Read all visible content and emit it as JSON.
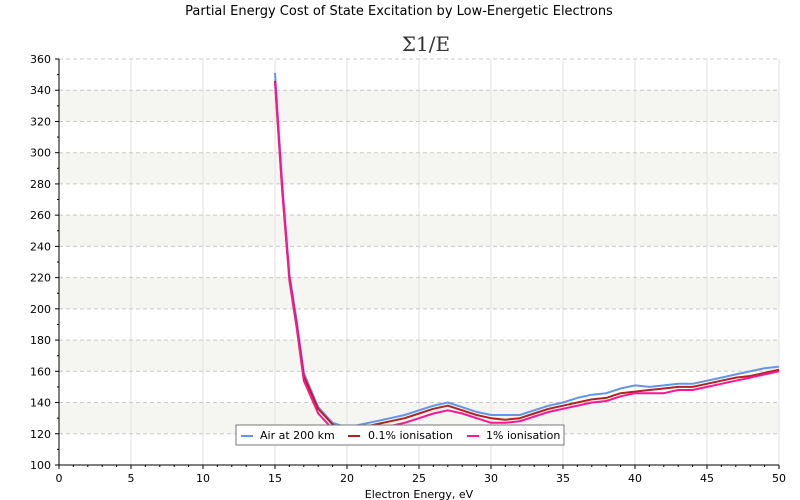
{
  "chart_data": {
    "type": "line",
    "title": "Partial Energy Cost of State Excitation by Low-Energetic Electrons",
    "subtitle": "Σ1/E",
    "xlabel": "Electron Energy, eV",
    "ylabel": "",
    "xlim": [
      0,
      50
    ],
    "ylim": [
      100,
      360
    ],
    "x_ticks": [
      0,
      5,
      10,
      15,
      20,
      25,
      30,
      35,
      40,
      45,
      50
    ],
    "y_ticks": [
      100,
      120,
      140,
      160,
      180,
      200,
      220,
      240,
      260,
      280,
      300,
      320,
      340,
      360
    ],
    "grid": true,
    "legend_position": "bottom-center",
    "x": [
      15,
      15.5,
      16,
      16.5,
      17,
      18,
      19,
      20,
      21,
      22,
      23,
      24,
      25,
      26,
      27,
      28,
      29,
      30,
      31,
      32,
      33,
      34,
      35,
      36,
      37,
      38,
      39,
      40,
      41,
      42,
      43,
      44,
      45,
      46,
      47,
      48,
      49,
      50
    ],
    "series": [
      {
        "name": "Air at 200 km",
        "color": "#6495ED",
        "values": [
          351,
          280,
          222,
          193,
          159,
          137,
          127,
          124,
          126,
          128,
          130,
          132,
          135,
          138,
          140,
          137,
          134,
          132,
          132,
          132,
          135,
          138,
          140,
          143,
          145,
          146,
          149,
          151,
          150,
          151,
          152,
          152,
          154,
          156,
          158,
          160,
          162,
          163
        ]
      },
      {
        "name": "0.1% ionisation",
        "color": "#B22222",
        "values": [
          346,
          277,
          220,
          190,
          157,
          136,
          126,
          122,
          124,
          126,
          128,
          130,
          133,
          136,
          138,
          135,
          132,
          130,
          129,
          130,
          133,
          136,
          138,
          140,
          142,
          143,
          146,
          147,
          148,
          149,
          150,
          150,
          152,
          154,
          156,
          157,
          159,
          161
        ]
      },
      {
        "name": "1% ionisation",
        "color": "#FF1493",
        "values": [
          345,
          275,
          218,
          188,
          154,
          133,
          123,
          119,
          121,
          123,
          125,
          127,
          130,
          133,
          135,
          133,
          130,
          127,
          127,
          128,
          131,
          134,
          136,
          138,
          140,
          141,
          144,
          146,
          146,
          146,
          148,
          148,
          150,
          152,
          154,
          156,
          158,
          160
        ]
      }
    ]
  },
  "legend": {
    "items": [
      {
        "label": "Air at 200 km",
        "color": "#6495ED"
      },
      {
        "label": "0.1% ionisation",
        "color": "#B22222"
      },
      {
        "label": "1% ionisation",
        "color": "#FF1493"
      }
    ]
  },
  "style": {
    "band_color": "#F5F5F2",
    "grid_color": "#C8C8C8",
    "vgrid_color": "#E2E2E2",
    "axis_color": "#000000",
    "legend_border": "#777777"
  }
}
